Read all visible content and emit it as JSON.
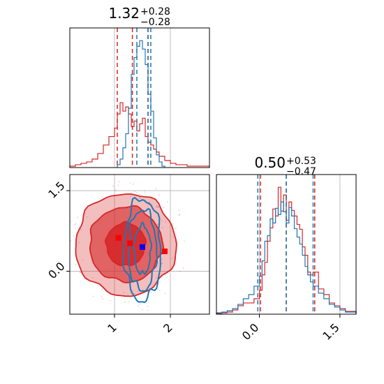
{
  "chart_data": [
    {
      "type": "histogram",
      "panel": "marginal-param-1",
      "title": {
        "value": "1.32",
        "plus": "+0.28",
        "minus": "−0.28"
      },
      "xlim": [
        0.2,
        2.7
      ],
      "grid": true,
      "series": [
        {
          "color": "#d62728",
          "bin_edges": [
            0.2,
            0.3,
            0.4,
            0.5,
            0.6,
            0.7,
            0.8,
            0.9,
            1.0,
            1.05,
            1.1,
            1.15,
            1.2,
            1.25,
            1.3,
            1.35,
            1.4,
            1.45,
            1.5,
            1.55,
            1.6,
            1.65,
            1.7,
            1.75,
            1.8,
            1.9,
            2.0,
            2.1,
            2.2,
            2.3,
            2.4,
            2.7
          ],
          "counts": [
            1,
            2,
            3,
            4,
            6,
            10,
            16,
            22,
            28,
            38,
            46,
            40,
            43,
            38,
            29,
            33,
            26,
            31,
            35,
            22,
            18,
            16,
            13,
            11,
            8,
            5,
            3,
            2,
            2,
            1,
            1
          ],
          "quantiles": [
            1.05,
            1.32,
            1.6
          ]
        },
        {
          "color": "#1f77b4",
          "bin_edges": [
            1.05,
            1.1,
            1.15,
            1.2,
            1.25,
            1.3,
            1.35,
            1.4,
            1.45,
            1.5,
            1.55,
            1.6,
            1.65,
            1.7,
            1.75,
            1.8,
            1.85,
            1.9
          ],
          "counts": [
            2,
            6,
            14,
            24,
            42,
            66,
            78,
            86,
            90,
            84,
            73,
            52,
            40,
            21,
            9,
            4,
            1
          ],
          "quantiles": [
            1.4,
            1.6,
            1.65
          ]
        }
      ]
    },
    {
      "type": "histogram",
      "panel": "marginal-param-2",
      "title": {
        "value": "0.50",
        "plus": "+0.53",
        "minus": "−0.47"
      },
      "xlim": [
        -0.8,
        1.8
      ],
      "x_ticks": [
        0.0,
        1.5
      ],
      "x_tick_labels": [
        "0.0",
        "1.5"
      ],
      "grid": true,
      "series": [
        {
          "color": "#d62728",
          "bin_edges": [
            -0.8,
            -0.7,
            -0.6,
            -0.5,
            -0.4,
            -0.3,
            -0.2,
            -0.1,
            0.0,
            0.05,
            0.1,
            0.15,
            0.2,
            0.25,
            0.3,
            0.35,
            0.4,
            0.45,
            0.5,
            0.55,
            0.6,
            0.65,
            0.7,
            0.75,
            0.8,
            0.85,
            0.9,
            0.95,
            1.0,
            1.1,
            1.2,
            1.3,
            1.4,
            1.5,
            1.6,
            1.8
          ],
          "counts": [
            1,
            2,
            3,
            6,
            12,
            16,
            16,
            22,
            34,
            56,
            74,
            104,
            123,
            150,
            140,
            181,
            147,
            170,
            134,
            160,
            148,
            140,
            128,
            121,
            96,
            84,
            60,
            56,
            60,
            36,
            28,
            16,
            12,
            8,
            4
          ],
          "quantiles": [
            0.02,
            0.5,
            1.03
          ]
        },
        {
          "color": "#1f77b4",
          "bin_edges": [
            -0.8,
            -0.7,
            -0.6,
            -0.5,
            -0.4,
            -0.3,
            -0.2,
            -0.1,
            0.0,
            0.05,
            0.1,
            0.15,
            0.2,
            0.25,
            0.3,
            0.35,
            0.4,
            0.45,
            0.5,
            0.55,
            0.6,
            0.65,
            0.7,
            0.75,
            0.8,
            0.85,
            0.9,
            0.95,
            1.0,
            1.1,
            1.2,
            1.3,
            1.4,
            1.5,
            1.6,
            1.8
          ],
          "counts": [
            2,
            3,
            5,
            8,
            14,
            22,
            28,
            40,
            54,
            76,
            104,
            112,
            136,
            130,
            151,
            142,
            160,
            146,
            130,
            152,
            140,
            122,
            110,
            100,
            84,
            68,
            56,
            46,
            40,
            30,
            22,
            14,
            10,
            6,
            3
          ],
          "quantiles": [
            -0.03,
            0.5,
            1.0
          ]
        }
      ]
    },
    {
      "type": "contour",
      "panel": "joint-param-1-vs-param-2",
      "xlim": [
        0.2,
        2.7
      ],
      "ylim": [
        -0.8,
        1.8
      ],
      "x_ticks": [
        1,
        2
      ],
      "x_tick_labels": [
        "1",
        "2"
      ],
      "y_ticks": [
        0.0,
        1.5
      ],
      "y_tick_labels": [
        "0.0",
        "1.5"
      ],
      "grid": true,
      "series": [
        {
          "color": "#d62728",
          "center": [
            1.2,
            0.5
          ],
          "level_radii": [
            [
              0.35,
              0.4
            ],
            [
              0.65,
              0.7
            ],
            [
              0.9,
              0.95
            ]
          ],
          "fill_opacity": [
            0.9,
            0.6,
            0.3
          ],
          "markers": [
            [
              1.07,
              0.62
            ],
            [
              1.28,
              0.52
            ],
            [
              1.9,
              0.37
            ]
          ]
        },
        {
          "color": "#1f77b4",
          "center": [
            1.5,
            0.4
          ],
          "level_radii": [
            [
              0.15,
              0.45
            ],
            [
              0.25,
              0.75
            ],
            [
              0.33,
              0.95
            ]
          ],
          "markers": [
            [
              1.5,
              0.45
            ]
          ]
        }
      ]
    }
  ]
}
